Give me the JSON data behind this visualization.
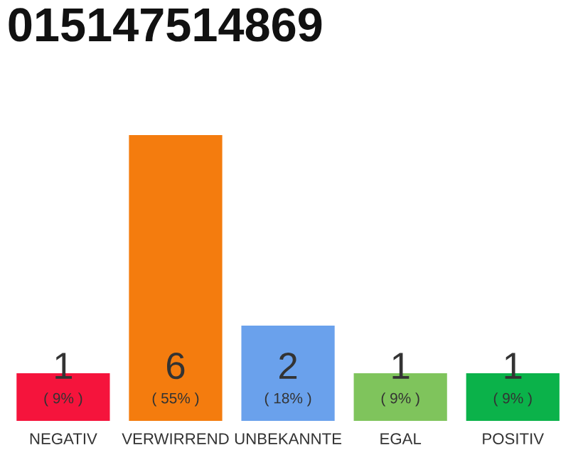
{
  "chart_data": {
    "type": "bar",
    "title": "015147514869",
    "categories": [
      "NEGATIV",
      "VERWIRREND",
      "UNBEKANNTE",
      "EGAL",
      "POSITIV"
    ],
    "values": [
      1,
      6,
      2,
      1,
      1
    ],
    "colors": [
      "#f5143c",
      "#f47c0e",
      "#6aa1ec",
      "#7fc45c",
      "#0bb24a"
    ],
    "data_labels": true,
    "annotations": [
      "( 9% )",
      "( 55% )",
      "( 18% )",
      "( 9% )",
      "( 9% )"
    ],
    "grid": false,
    "legend": false
  }
}
